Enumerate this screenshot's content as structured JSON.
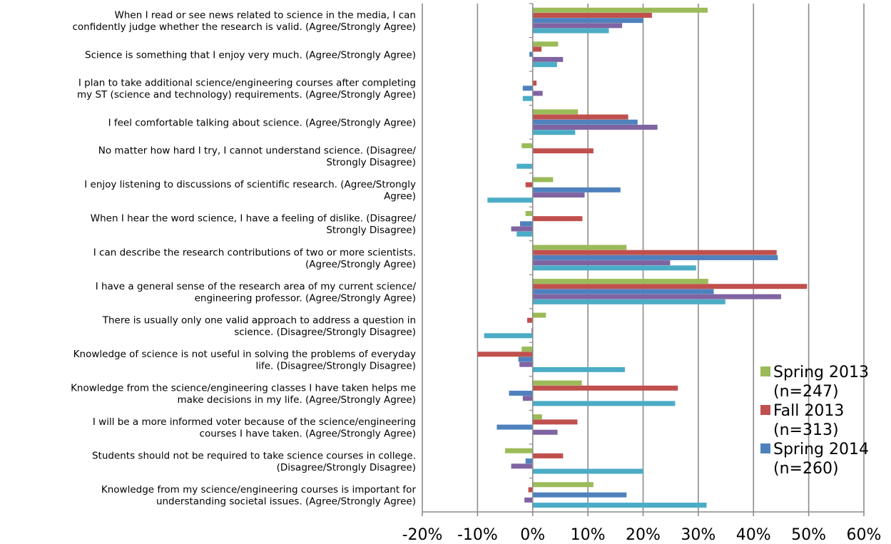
{
  "chart_data": {
    "type": "bar",
    "orientation": "horizontal",
    "title": "",
    "xlabel": "",
    "ylabel": "",
    "xlim": [
      -20,
      60
    ],
    "xticks": [
      -20,
      -10,
      0,
      10,
      20,
      30,
      40,
      50,
      60
    ],
    "tick_labels": [
      "-20%",
      "-10%",
      "0%",
      "10%",
      "20%",
      "30%",
      "40%",
      "50%",
      "60%"
    ],
    "grid": "vertical",
    "legend_position": "right",
    "categories": [
      [
        "When I read or see news related to science in the media, I can",
        "confidently judge whether the research is valid. (Agree/Strongly Agree)"
      ],
      [
        "Science is something that I enjoy very much. (Agree/Strongly Agree)"
      ],
      [
        "I plan to take additional science/engineering courses after completing",
        "my ST (science and technology) requirements. (Agree/Strongly Agree)"
      ],
      [
        "I feel comfortable talking about science. (Agree/Strongly Agree)"
      ],
      [
        "No matter how hard I try, I cannot understand science. (Disagree/",
        "Strongly Disagree)"
      ],
      [
        "I enjoy listening to discussions of scientific research. (Agree/Strongly",
        "Agree)"
      ],
      [
        "When I hear the word science, I have a feeling of dislike. (Disagree/",
        "Strongly Disagree)"
      ],
      [
        "I can describe the research contributions of two or more scientists.",
        "(Agree/Strongly Agree)"
      ],
      [
        "I have a general sense of the research area of my current science/",
        "engineering professor. (Agree/Strongly Agree)"
      ],
      [
        "There is usually only one valid approach to address a question in",
        "science. (Disagree/Strongly Disagree)"
      ],
      [
        "Knowledge of science is not useful in solving the problems of everyday",
        "life. (Disagree/Strongly Disagree)"
      ],
      [
        "Knowledge from the science/engineering classes I have taken helps me",
        "make decisions in my life. (Agree/Strongly Agree)"
      ],
      [
        "I will be a more informed voter because of the science/engineering",
        "courses I have taken. (Agree/Strongly Agree)"
      ],
      [
        "Students should not be required to take science courses in college.",
        "(Disagree/Strongly Disagree)"
      ],
      [
        "Knowledge from my science/engineering courses is important for",
        "understanding societal issues. (Agree/Strongly Agree)"
      ]
    ],
    "series": [
      {
        "name": "Spring 2013 (n=247)",
        "legend_lines": [
          "Spring 2013",
          "(n=247)"
        ],
        "color": "#9BBB59",
        "values": [
          31.7,
          4.6,
          0,
          8.2,
          -2.0,
          3.7,
          -1.3,
          17.0,
          31.8,
          2.4,
          -2.0,
          8.9,
          1.7,
          -5.0,
          11.0
        ]
      },
      {
        "name": "Fall 2013 (n=313)",
        "legend_lines": [
          "Fall 2013",
          "(n=313)"
        ],
        "color": "#C0504D",
        "values": [
          21.6,
          1.6,
          0.7,
          17.3,
          11.0,
          -1.3,
          9.0,
          44.2,
          49.7,
          -1.0,
          -10.0,
          26.3,
          8.1,
          5.5,
          -0.8
        ]
      },
      {
        "name": "Spring 2014 (n=260)",
        "legend_lines": [
          "Spring 2014",
          "(n=260)"
        ],
        "color": "#4F81BD",
        "values": [
          20.0,
          -0.6,
          -1.8,
          19.0,
          0,
          15.9,
          -2.3,
          44.4,
          32.8,
          0,
          -2.6,
          -4.3,
          -6.5,
          -1.3,
          17.0
        ]
      },
      {
        "name": "",
        "color": "#8064A2",
        "values": [
          16.2,
          5.5,
          1.8,
          22.6,
          0,
          9.4,
          -3.9,
          24.9,
          45.0,
          -0.2,
          -2.4,
          -1.8,
          4.5,
          -3.9,
          -1.5
        ]
      },
      {
        "name": "",
        "color": "#4BACC6",
        "values": [
          13.8,
          4.4,
          -1.8,
          7.7,
          -2.9,
          -8.2,
          -2.9,
          29.6,
          34.9,
          -8.8,
          16.7,
          25.8,
          0,
          20.0,
          31.5
        ]
      }
    ]
  }
}
